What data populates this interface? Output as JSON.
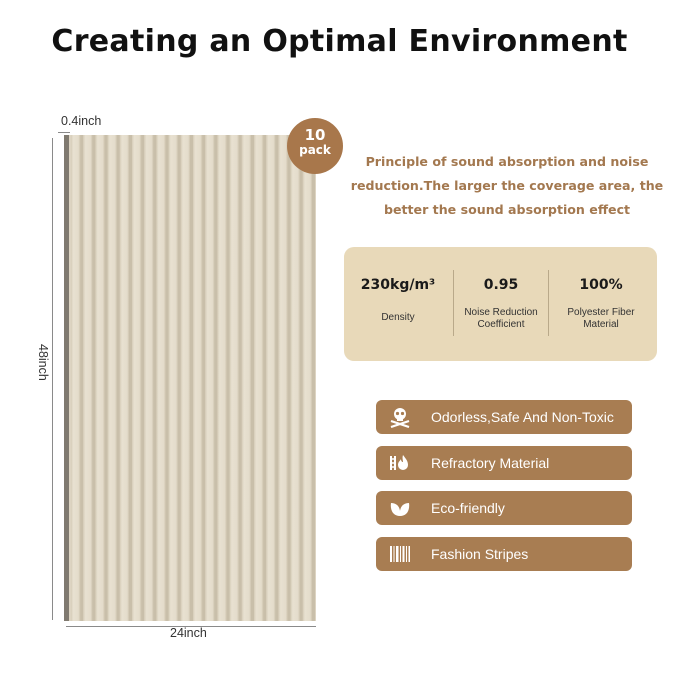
{
  "header": {
    "title": "Creating an Optimal Environment"
  },
  "dimensions": {
    "thickness": "0.4inch",
    "height": "48inch",
    "width": "24inch"
  },
  "badge": {
    "count": "10",
    "unit": "pack"
  },
  "principle": {
    "lines": [
      "Principle of sound absorption and noise",
      "reduction.The larger the coverage area, the",
      "better the sound absorption effect"
    ]
  },
  "specs": [
    {
      "value": "230kg/m³",
      "label_lines": [
        "Density"
      ]
    },
    {
      "value": "0.95",
      "label_lines": [
        "Noise Reduction",
        "Coefficient"
      ]
    },
    {
      "value": "100%",
      "label_lines": [
        "Polyester Fiber",
        "Material"
      ]
    }
  ],
  "features": [
    {
      "label": "Odorless,Safe And Non-Toxic",
      "icon": "skull-crossbones-icon"
    },
    {
      "label": "Refractory Material",
      "icon": "fire-barrier-icon"
    },
    {
      "label": "Eco-friendly",
      "icon": "leaf-icon"
    },
    {
      "label": "Fashion Stripes",
      "icon": "barcode-stripes-icon"
    }
  ],
  "colors": {
    "accent": "#a87d52",
    "spec_bg": "#e8d9b9",
    "text_accent": "#a3784f",
    "panel": "#e2dac9"
  }
}
